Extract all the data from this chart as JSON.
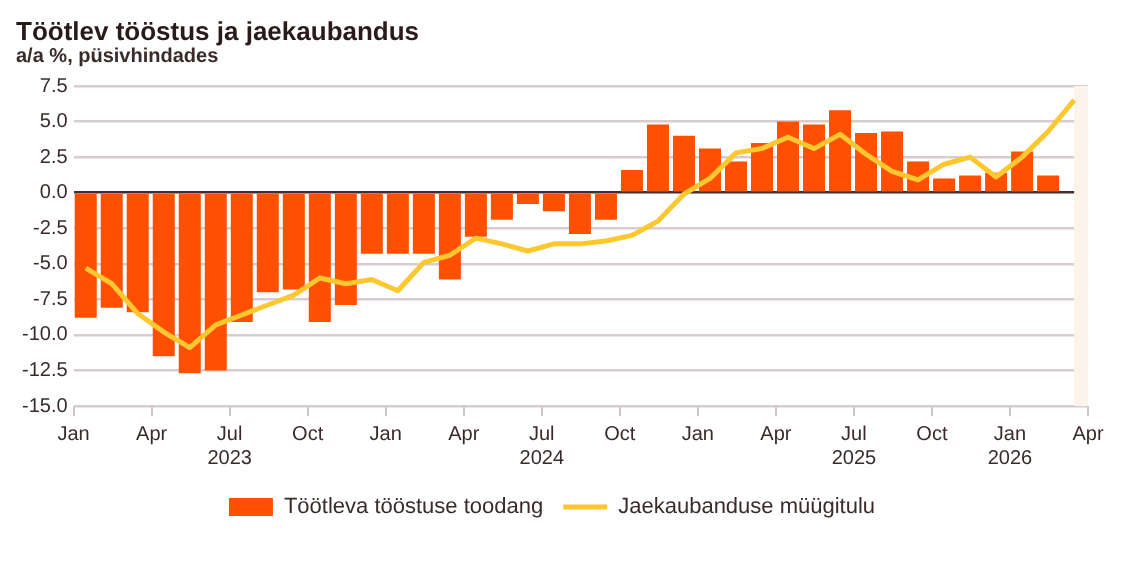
{
  "chart_data": {
    "type": "bar",
    "title": "Töötlev tööstus ja jaekaubandus",
    "subtitle": "a/a %, püsivhindades",
    "xlim": [
      "2023-01-01",
      "2026-04-01"
    ],
    "xticks": [
      {
        "value": "2023-01-01",
        "label": "Jan"
      },
      {
        "value": "2023-04-01",
        "label": "Apr"
      },
      {
        "value": "2023-07-01",
        "label": "Jul\n2023"
      },
      {
        "value": "2023-10-01",
        "label": "Oct"
      },
      {
        "value": "2024-01-01",
        "label": "Jan"
      },
      {
        "value": "2024-04-01",
        "label": "Apr"
      },
      {
        "value": "2024-07-01",
        "label": "Jul\n2024"
      },
      {
        "value": "2024-10-01",
        "label": "Oct"
      },
      {
        "value": "2025-01-01",
        "label": "Jan"
      },
      {
        "value": "2025-04-01",
        "label": "Apr"
      },
      {
        "value": "2025-07-01",
        "label": "Jul\n2025"
      },
      {
        "value": "2025-10-01",
        "label": "Oct"
      },
      {
        "value": "2026-01-01",
        "label": "Jan\n2026"
      },
      {
        "value": "2026-04-01",
        "label": "Apr"
      }
    ],
    "ylim": [
      -15,
      7.5
    ],
    "yticks": [
      {
        "value": 7.5,
        "label": "7.5"
      },
      {
        "value": 5,
        "label": "5.0"
      },
      {
        "value": 2.5,
        "label": "2.5"
      },
      {
        "value": 0,
        "label": "0.0"
      },
      {
        "value": -2.5,
        "label": "-2.5"
      },
      {
        "value": -5,
        "label": "-5.0"
      },
      {
        "value": -7.5,
        "label": "-7.5"
      },
      {
        "value": -10,
        "label": "-10.0"
      },
      {
        "value": -12.5,
        "label": "-12.5"
      },
      {
        "value": -15,
        "label": "-15.0"
      }
    ],
    "grid": "y",
    "legend": "bottom",
    "bands": [
      {
        "axis": "x",
        "from": "2026-03-15",
        "to": "2026-04-01",
        "color": "#fdf3ea"
      }
    ],
    "series": [
      {
        "name": "Töötleva tööstuse toodang",
        "color": "#fe5000",
        "x": [
          "2023-01-15",
          "2023-02-15",
          "2023-03-15",
          "2023-04-15",
          "2023-05-15",
          "2023-06-15",
          "2023-07-15",
          "2023-08-15",
          "2023-09-15",
          "2023-10-15",
          "2023-11-15",
          "2023-12-15",
          "2024-01-15",
          "2024-02-15",
          "2024-03-15",
          "2024-04-15",
          "2024-05-15",
          "2024-06-15",
          "2024-07-15",
          "2024-08-15",
          "2024-09-15",
          "2024-10-15",
          "2024-11-15",
          "2024-12-15",
          "2025-01-15",
          "2025-02-15",
          "2025-03-15",
          "2025-04-15",
          "2025-05-15",
          "2025-06-15",
          "2025-07-15",
          "2025-08-15",
          "2025-09-15",
          "2025-10-15",
          "2025-11-15",
          "2025-12-15",
          "2026-01-15",
          "2026-02-15"
        ],
        "values": [
          -8.8,
          -8.1,
          -8.4,
          -11.5,
          -12.7,
          -12.5,
          -9.1,
          -7.0,
          -6.8,
          -9.1,
          -7.9,
          -4.3,
          -4.3,
          -4.3,
          -6.1,
          -3.1,
          -1.9,
          -0.8,
          -1.3,
          -2.9,
          -1.9,
          1.6,
          4.8,
          4.0,
          3.1,
          2.2,
          3.5,
          5.0,
          4.8,
          5.8,
          4.2,
          4.3,
          2.2,
          1.0,
          1.2,
          1.4,
          2.9,
          1.2
        ]
      },
      {
        "name": "Jaekaubanduse müügitulu",
        "type": "line",
        "color": "#fdc82f",
        "x": [
          "2023-01-15",
          "2023-02-15",
          "2023-03-15",
          "2023-04-15",
          "2023-05-15",
          "2023-06-15",
          "2023-07-15",
          "2023-08-15",
          "2023-09-15",
          "2023-10-15",
          "2023-11-15",
          "2023-12-15",
          "2024-01-15",
          "2024-02-15",
          "2024-03-15",
          "2024-04-15",
          "2024-05-15",
          "2024-06-15",
          "2024-07-15",
          "2024-08-15",
          "2024-09-15",
          "2024-10-15",
          "2024-11-15",
          "2024-12-15",
          "2025-01-15",
          "2025-02-15",
          "2025-03-15",
          "2025-04-15",
          "2025-05-15",
          "2025-06-15",
          "2025-07-15",
          "2025-08-15",
          "2025-09-15",
          "2025-10-15",
          "2025-11-15",
          "2025-12-15",
          "2026-01-15",
          "2026-02-15",
          "2026-03-15"
        ],
        "values": [
          -5.3,
          -6.4,
          -8.5,
          -9.8,
          -10.9,
          -9.3,
          -8.6,
          -7.9,
          -7.2,
          -6.0,
          -6.4,
          -6.1,
          -6.9,
          -4.9,
          -4.4,
          -3.2,
          -3.6,
          -4.1,
          -3.6,
          -3.6,
          -3.4,
          -3.0,
          -2.0,
          -0.1,
          1.0,
          2.8,
          3.1,
          3.9,
          3.1,
          4.1,
          2.7,
          1.5,
          0.9,
          2.0,
          2.5,
          1.1,
          2.5,
          4.3,
          6.5
        ]
      }
    ]
  }
}
